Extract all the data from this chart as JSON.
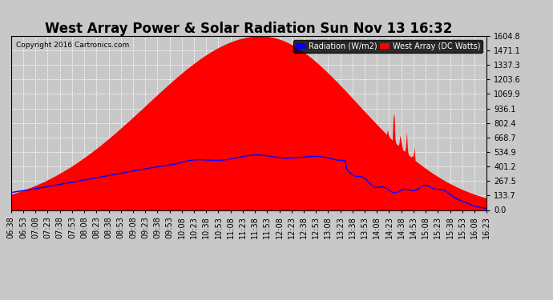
{
  "title": "West Array Power & Solar Radiation Sun Nov 13 16:32",
  "copyright": "Copyright 2016 Cartronics.com",
  "background_color": "#c8c8c8",
  "plot_bg_color": "#c8c8c8",
  "y_ticks": [
    0.0,
    133.7,
    267.5,
    401.2,
    534.9,
    668.7,
    802.4,
    936.1,
    1069.9,
    1203.6,
    1337.3,
    1471.1,
    1604.8
  ],
  "y_max": 1604.8,
  "legend_radiation_label": "Radiation (W/m2)",
  "legend_west_label": "West Array (DC Watts)",
  "legend_radiation_color": "#0000ff",
  "legend_west_color": "#ff0000",
  "x_tick_labels": [
    "06:38",
    "06:53",
    "07:08",
    "07:23",
    "07:38",
    "07:53",
    "08:08",
    "08:23",
    "08:38",
    "08:53",
    "09:08",
    "09:23",
    "09:38",
    "09:53",
    "10:08",
    "10:23",
    "10:38",
    "10:53",
    "11:08",
    "11:23",
    "11:38",
    "11:53",
    "12:08",
    "12:23",
    "12:38",
    "12:53",
    "13:08",
    "13:23",
    "13:38",
    "13:53",
    "14:08",
    "14:23",
    "14:38",
    "14:53",
    "15:08",
    "15:23",
    "15:38",
    "15:53",
    "16:08",
    "16:23"
  ],
  "grid_color": "#ffffff",
  "title_color": "#000000",
  "title_fontsize": 12,
  "axis_label_fontsize": 7,
  "west_peak": 1604.8,
  "west_peak_time": 705,
  "rad_peak": 495,
  "rad_peak_time": 720
}
